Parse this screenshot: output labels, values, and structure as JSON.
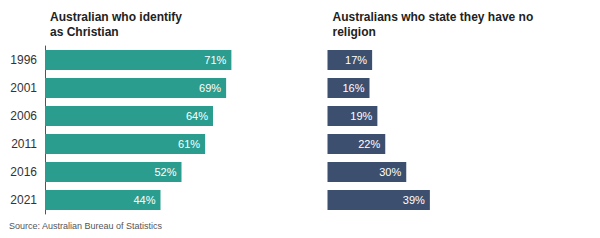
{
  "chart_data": [
    {
      "type": "bar",
      "orientation": "horizontal",
      "title": "Australian who identify\nas Christian",
      "categories": [
        "1996",
        "2001",
        "2006",
        "2011",
        "2016",
        "2021"
      ],
      "values": [
        71,
        69,
        64,
        61,
        52,
        44
      ],
      "value_labels": [
        "71%",
        "69%",
        "64%",
        "61%",
        "52%",
        "44%"
      ],
      "color": "#2a9d8f",
      "xlim": [
        0,
        100
      ],
      "grid": false,
      "data_labels": true,
      "tick_labels": "y",
      "annotations": [
        "Source: Australian Bureau of Statistics"
      ]
    },
    {
      "type": "bar",
      "orientation": "horizontal",
      "title": "Australians who state they have no\nreligion",
      "categories": [
        "1996",
        "2001",
        "2006",
        "2011",
        "2016",
        "2021"
      ],
      "values": [
        17,
        16,
        19,
        22,
        30,
        39
      ],
      "value_labels": [
        "17%",
        "16%",
        "19%",
        "22%",
        "30%",
        "39%"
      ],
      "color": "#3d4f6e",
      "xlim": [
        0,
        100
      ],
      "grid": false,
      "data_labels": true,
      "tick_labels": false
    }
  ]
}
